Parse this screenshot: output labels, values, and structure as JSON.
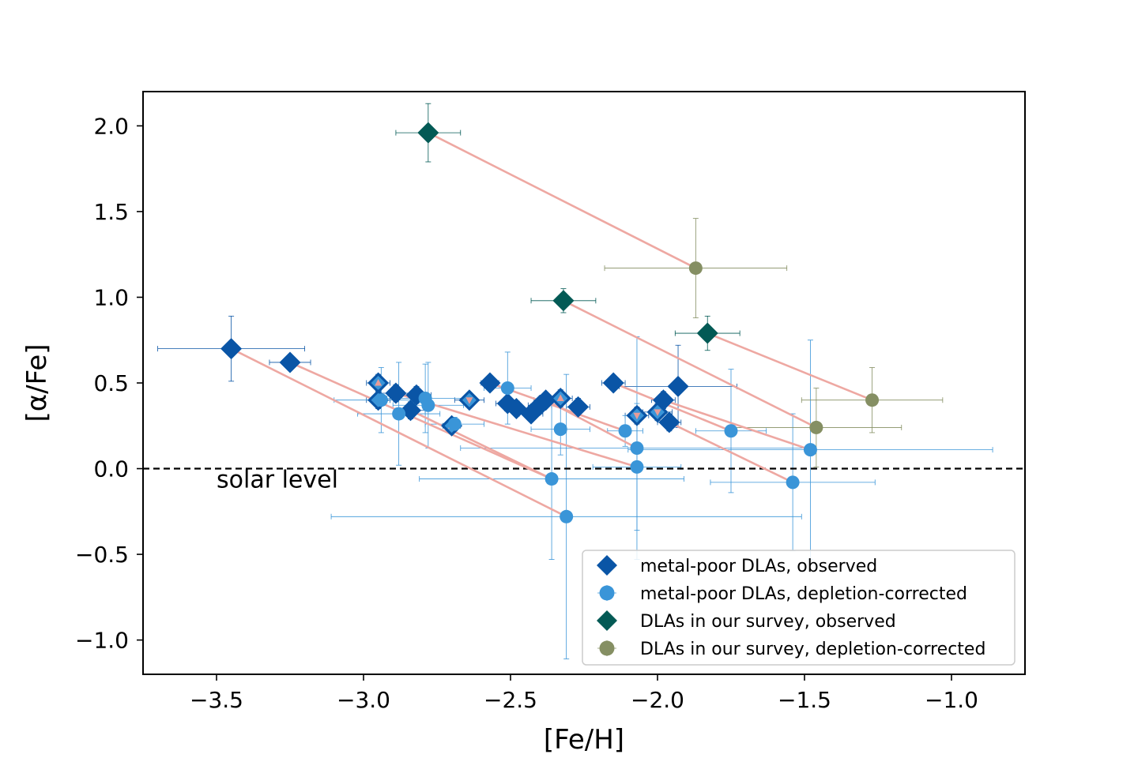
{
  "chart_data": {
    "type": "scatter",
    "xlabel": "[Fe/H]",
    "ylabel": "[α/Fe]",
    "xlim": [
      -3.75,
      -0.75
    ],
    "ylim": [
      -1.2,
      2.2
    ],
    "xticks": [
      {
        "value": -3.5,
        "label": "−3.5"
      },
      {
        "value": -3.0,
        "label": "−3.0"
      },
      {
        "value": -2.5,
        "label": "−2.5"
      },
      {
        "value": -2.0,
        "label": "−2.0"
      },
      {
        "value": -1.5,
        "label": "−1.5"
      },
      {
        "value": -1.0,
        "label": "−1.0"
      }
    ],
    "yticks": [
      {
        "value": -1.0,
        "label": "−1.0"
      },
      {
        "value": -0.5,
        "label": "−0.5"
      },
      {
        "value": 0.0,
        "label": "0.0"
      },
      {
        "value": 0.5,
        "label": "0.5"
      },
      {
        "value": 1.0,
        "label": "1.0"
      },
      {
        "value": 1.5,
        "label": "1.5"
      },
      {
        "value": 2.0,
        "label": "2.0"
      }
    ],
    "grid": false,
    "legend_position": "bottom-right",
    "reference_line": {
      "y": 0.0,
      "style": "dashed",
      "label": "solar level"
    },
    "colors": {
      "metal_poor_observed": "#0a55a6",
      "metal_poor_corrected": "#3a95d8",
      "survey_observed": "#035a55",
      "survey_corrected": "#858f63",
      "connector": "#eea8a2",
      "inner_marker": "#e89c98"
    },
    "series": [
      {
        "key": "mp_obs",
        "name": "metal-poor DLAs, observed",
        "marker": "diamond",
        "points": [
          {
            "x": -3.45,
            "y": 0.7,
            "xerr": 0.25,
            "yerr": 0.19
          },
          {
            "x": -3.25,
            "y": 0.62,
            "xerr": 0.07,
            "yerr": 0.03
          },
          {
            "x": -2.95,
            "y": 0.5,
            "xerr": 0.04,
            "yerr": 0.05,
            "inner": "up"
          },
          {
            "x": -2.95,
            "y": 0.4,
            "xerr": 0.04,
            "yerr": 0.05,
            "inner": "up"
          },
          {
            "x": -2.89,
            "y": 0.44,
            "xerr": 0.05,
            "yerr": 0.05
          },
          {
            "x": -2.84,
            "y": 0.34,
            "xerr": 0.05,
            "yerr": 0.05
          },
          {
            "x": -2.82,
            "y": 0.43,
            "xerr": 0.05,
            "yerr": 0.05
          },
          {
            "x": -2.7,
            "y": 0.25,
            "xerr": 0.03,
            "yerr": 0.04,
            "inner": "up"
          },
          {
            "x": -2.64,
            "y": 0.4,
            "xerr": 0.05,
            "yerr": 0.04,
            "inner": "down"
          },
          {
            "x": -2.57,
            "y": 0.5,
            "xerr": 0.03,
            "yerr": 0.04
          },
          {
            "x": -2.51,
            "y": 0.38,
            "xerr": 0.04,
            "yerr": 0.04
          },
          {
            "x": -2.48,
            "y": 0.35,
            "xerr": 0.04,
            "yerr": 0.04
          },
          {
            "x": -2.43,
            "y": 0.32,
            "xerr": 0.04,
            "yerr": 0.04
          },
          {
            "x": -2.4,
            "y": 0.37,
            "xerr": 0.04,
            "yerr": 0.04
          },
          {
            "x": -2.38,
            "y": 0.4,
            "xerr": 0.04,
            "yerr": 0.04
          },
          {
            "x": -2.33,
            "y": 0.41,
            "xerr": 0.04,
            "yerr": 0.05,
            "inner": "up"
          },
          {
            "x": -2.27,
            "y": 0.36,
            "xerr": 0.04,
            "yerr": 0.05
          },
          {
            "x": -2.15,
            "y": 0.5,
            "xerr": 0.04,
            "yerr": 0.04
          },
          {
            "x": -2.07,
            "y": 0.31,
            "xerr": 0.04,
            "yerr": 0.05,
            "inner": "down"
          },
          {
            "x": -2.0,
            "y": 0.33,
            "xerr": 0.05,
            "yerr": 0.05,
            "inner": "down"
          },
          {
            "x": -1.98,
            "y": 0.4,
            "xerr": 0.04,
            "yerr": 0.05
          },
          {
            "x": -1.96,
            "y": 0.27,
            "xerr": 0.04,
            "yerr": 0.05
          },
          {
            "x": -1.93,
            "y": 0.48,
            "xerr": 0.2,
            "yerr": 0.24
          }
        ]
      },
      {
        "key": "mp_cor",
        "name": "metal-poor DLAs, depletion-corrected",
        "marker": "circle",
        "points": [
          {
            "x": -2.94,
            "y": 0.4,
            "xerr": 0.16,
            "yerr": 0.19
          },
          {
            "x": -2.88,
            "y": 0.32,
            "xerr": 0.14,
            "yerr": 0.3
          },
          {
            "x": -2.79,
            "y": 0.41,
            "xerr": 0.13,
            "yerr": 0.2
          },
          {
            "x": -2.78,
            "y": 0.37,
            "xerr": 0.12,
            "yerr": 0.25
          },
          {
            "x": -2.69,
            "y": 0.26,
            "xerr": 0.1,
            "yerr": 0.04
          },
          {
            "x": -2.51,
            "y": 0.47,
            "xerr": 0.08,
            "yerr": 0.21
          },
          {
            "x": -2.36,
            "y": -0.06,
            "xerr": 0.45,
            "yerr": 0.47
          },
          {
            "x": -2.33,
            "y": 0.23,
            "xerr": 0.1,
            "yerr": 0.15
          },
          {
            "x": -2.31,
            "y": -0.28,
            "xerr": 0.8,
            "yerr": 0.83
          },
          {
            "x": -2.11,
            "y": 0.22,
            "xerr": 0.06,
            "yerr": 0.09
          },
          {
            "x": -2.07,
            "y": 0.12,
            "xerr": 0.6,
            "yerr": 0.65
          },
          {
            "x": -2.07,
            "y": 0.01,
            "xerr": 0.15,
            "yerr": 0.37
          },
          {
            "x": -1.75,
            "y": 0.22,
            "xerr": 0.12,
            "yerr": 0.36
          },
          {
            "x": -1.54,
            "y": -0.08,
            "xerr": 0.28,
            "yerr": 0.4
          },
          {
            "x": -1.48,
            "y": 0.11,
            "xerr": 0.62,
            "yerr": 0.64
          }
        ]
      },
      {
        "key": "sv_obs",
        "name": "DLAs in our survey, observed",
        "marker": "diamond",
        "points": [
          {
            "x": -2.78,
            "y": 1.96,
            "xerr": 0.11,
            "yerr": 0.17
          },
          {
            "x": -2.32,
            "y": 0.98,
            "xerr": 0.11,
            "yerr": 0.07
          },
          {
            "x": -1.83,
            "y": 0.79,
            "xerr": 0.11,
            "yerr": 0.1
          }
        ]
      },
      {
        "key": "sv_cor",
        "name": "DLAs in our survey, depletion-corrected",
        "marker": "circle",
        "points": [
          {
            "x": -1.87,
            "y": 1.17,
            "xerr": 0.31,
            "yerr": 0.29
          },
          {
            "x": -1.46,
            "y": 0.24,
            "xerr": 0.29,
            "yerr": 0.23
          },
          {
            "x": -1.27,
            "y": 0.4,
            "xerr": 0.24,
            "yerr": 0.19
          }
        ]
      }
    ],
    "connectors": [
      {
        "from": [
          -2.78,
          1.96
        ],
        "to": [
          -1.87,
          1.17
        ]
      },
      {
        "from": [
          -2.32,
          0.98
        ],
        "to": [
          -1.46,
          0.24
        ]
      },
      {
        "from": [
          -1.83,
          0.79
        ],
        "to": [
          -1.27,
          0.4
        ]
      },
      {
        "from": [
          -3.45,
          0.7
        ],
        "to": [
          -2.31,
          -0.28
        ]
      },
      {
        "from": [
          -3.25,
          0.62
        ],
        "to": [
          -2.36,
          -0.06
        ]
      },
      {
        "from": [
          -2.89,
          0.44
        ],
        "to": [
          -2.07,
          0.01
        ]
      },
      {
        "from": [
          -2.84,
          0.34
        ],
        "to": [
          -2.36,
          -0.06
        ]
      },
      {
        "from": [
          -2.57,
          0.5
        ],
        "to": [
          -2.11,
          0.22
        ]
      },
      {
        "from": [
          -2.38,
          0.4
        ],
        "to": [
          -2.07,
          0.12
        ]
      },
      {
        "from": [
          -2.15,
          0.5
        ],
        "to": [
          -1.75,
          0.22
        ]
      },
      {
        "from": [
          -1.96,
          0.27
        ],
        "to": [
          -1.54,
          -0.08
        ]
      },
      {
        "from": [
          -1.98,
          0.4
        ],
        "to": [
          -1.48,
          0.11
        ]
      }
    ]
  }
}
